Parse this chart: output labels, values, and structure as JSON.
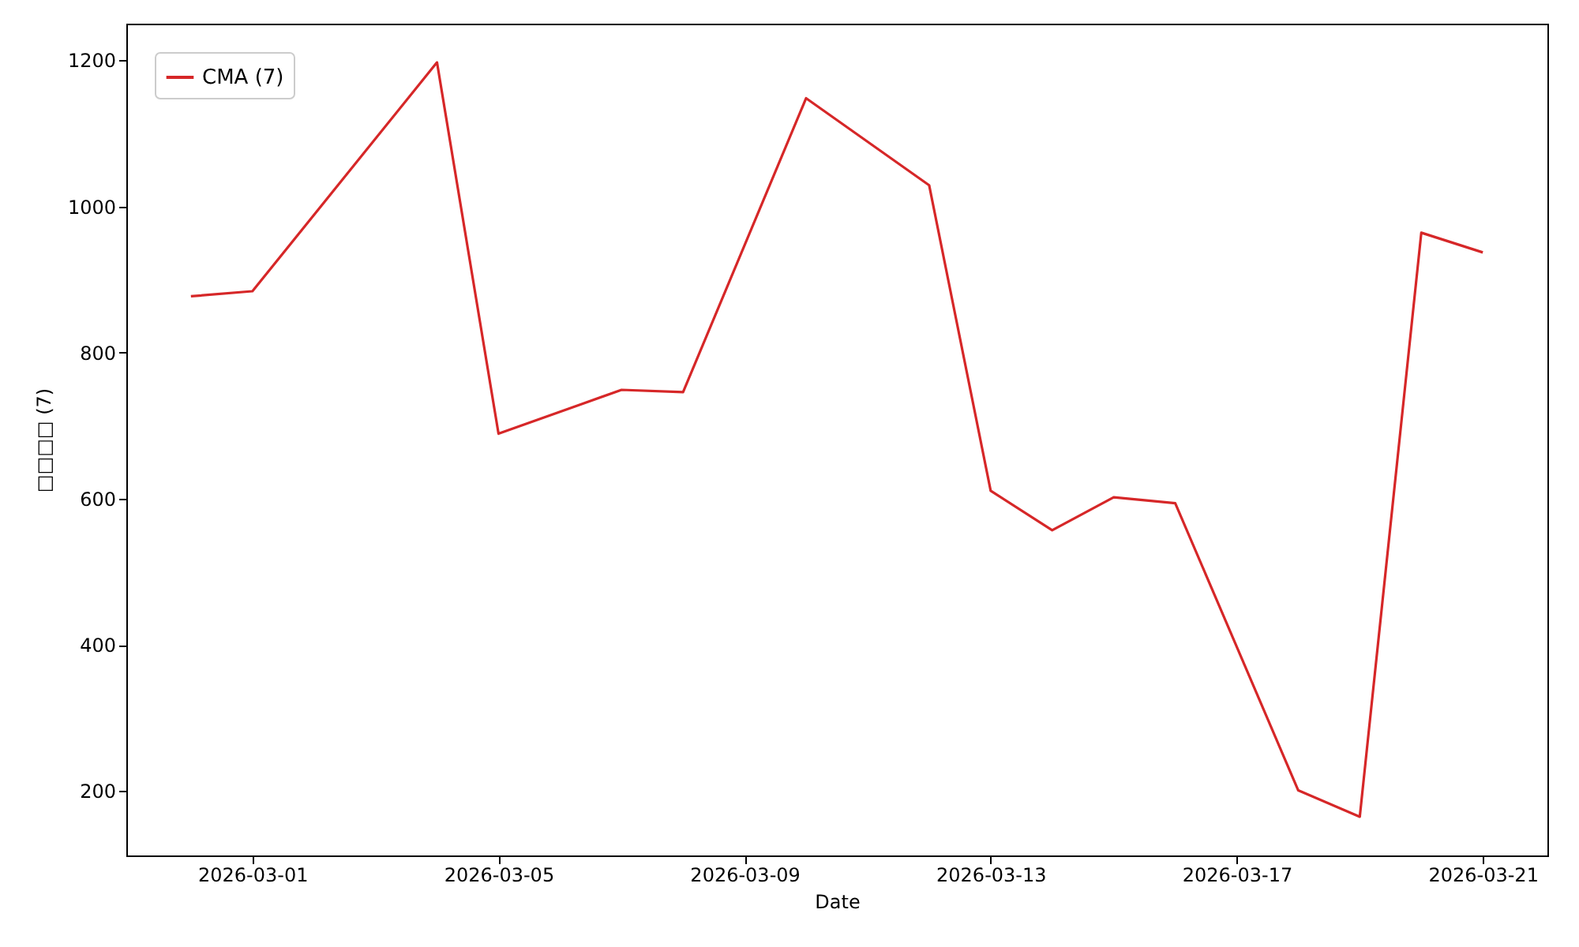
{
  "chart_data": {
    "type": "line",
    "xlabel": "Date",
    "ylabel": "□□□□ (7)",
    "x": [
      "2026-02-28",
      "2026-03-01",
      "2026-03-04",
      "2026-03-05",
      "2026-03-07",
      "2026-03-08",
      "2026-03-10",
      "2026-03-12",
      "2026-03-13",
      "2026-03-14",
      "2026-03-15",
      "2026-03-16",
      "2026-03-18",
      "2026-03-19",
      "2026-03-20",
      "2026-03-21"
    ],
    "series": [
      {
        "name": "CMA (7)",
        "color": "#d62728",
        "values": [
          877,
          884,
          1197,
          689,
          749,
          746,
          1148,
          1029,
          611,
          557,
          602,
          594,
          201,
          165,
          964,
          937
        ]
      }
    ],
    "xlim": [
      "2026-02-26T22:48",
      "2026-03-22T01:12"
    ],
    "xticks": [
      {
        "value": "2026-03-01",
        "label": "2026-03-01"
      },
      {
        "value": "2026-03-05",
        "label": "2026-03-05"
      },
      {
        "value": "2026-03-09",
        "label": "2026-03-09"
      },
      {
        "value": "2026-03-13",
        "label": "2026-03-13"
      },
      {
        "value": "2026-03-17",
        "label": "2026-03-17"
      },
      {
        "value": "2026-03-21",
        "label": "2026-03-21"
      }
    ],
    "ylim": [
      112,
      1250
    ],
    "yticks": [
      200,
      400,
      600,
      800,
      1000,
      1200
    ],
    "grid": false,
    "legend": "top left",
    "line_style": "solid",
    "marker": "none"
  }
}
